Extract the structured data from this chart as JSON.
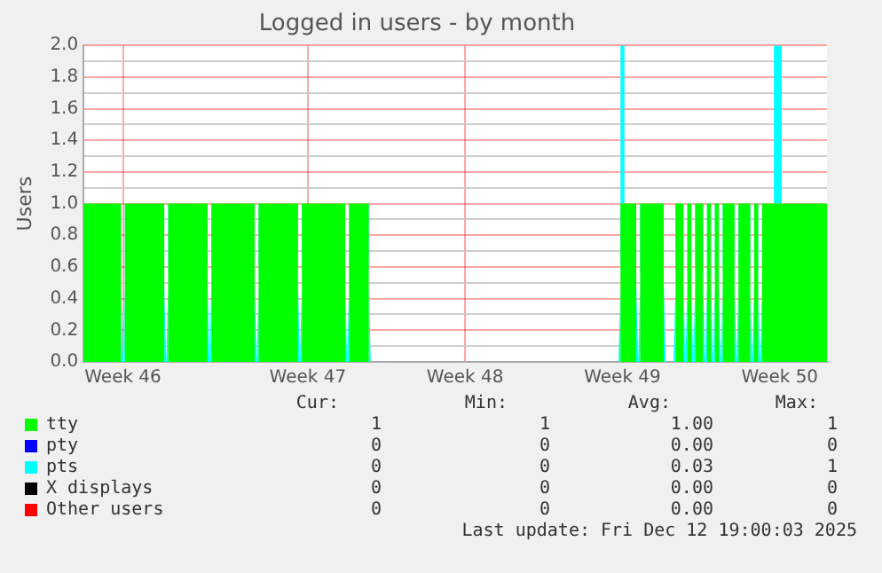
{
  "chart_data": {
    "type": "area",
    "stacked": true,
    "title": "Logged in users - by month",
    "ylabel": "Users",
    "categories": [
      null,
      null,
      null,
      null,
      null,
      null,
      null,
      null,
      null,
      null,
      "Week 46",
      null,
      null,
      null,
      null,
      null,
      null,
      null,
      null,
      null,
      null,
      null,
      null,
      null,
      null,
      null,
      null,
      null,
      null,
      null,
      null,
      null,
      null,
      null,
      null,
      null,
      null,
      null,
      null,
      null,
      null,
      null,
      null,
      null,
      null,
      null,
      null,
      null,
      null,
      null,
      null,
      null,
      null,
      null,
      null,
      null,
      null,
      "Week 47",
      null,
      null,
      null,
      null,
      null,
      null,
      null,
      null,
      null,
      null,
      null,
      null,
      null,
      null,
      null,
      null,
      null,
      null,
      null,
      null,
      null,
      null,
      null,
      null,
      null,
      null,
      null,
      null,
      null,
      null,
      null,
      null,
      null,
      null,
      null,
      null,
      null,
      null,
      null,
      "Week 48",
      null,
      null,
      null,
      null,
      null,
      null,
      null,
      null,
      null,
      null,
      null,
      null,
      null,
      null,
      null,
      null,
      null,
      null,
      null,
      null,
      null,
      null,
      null,
      null,
      null,
      null,
      null,
      null,
      null,
      null,
      null,
      null,
      null,
      null,
      null,
      null,
      null,
      null,
      null,
      "Week 49",
      null,
      null,
      null,
      null,
      null,
      null,
      null,
      null,
      null,
      null,
      null,
      null,
      null,
      null,
      null,
      null,
      null,
      null,
      null,
      null,
      null,
      null,
      null,
      null,
      null,
      null,
      null,
      null,
      null,
      null,
      null,
      null,
      null,
      null,
      null,
      null,
      null,
      null,
      null,
      "Week 50",
      null,
      null,
      null,
      null,
      null,
      null,
      null,
      null,
      null,
      null,
      null,
      null
    ],
    "series": [
      {
        "name": "tty",
        "color": "#00ff00",
        "values": [
          1,
          1,
          1,
          1,
          1,
          1,
          1,
          1,
          1,
          1,
          0,
          1,
          1,
          1,
          1,
          1,
          1,
          1,
          1,
          1,
          1,
          0,
          1,
          1,
          1,
          1,
          1,
          1,
          1,
          1,
          1,
          1,
          0,
          1,
          1,
          1,
          1,
          1,
          1,
          1,
          1,
          1,
          1,
          1,
          0,
          1,
          1,
          1,
          1,
          1,
          1,
          1,
          1,
          1,
          1,
          0,
          1,
          1,
          1,
          1,
          1,
          1,
          1,
          1,
          1,
          1,
          1,
          0,
          1,
          1,
          1,
          1,
          1,
          0,
          0,
          0,
          0,
          0,
          0,
          0,
          0,
          0,
          0,
          0,
          0,
          0,
          0,
          0,
          0,
          0,
          0,
          0,
          0,
          0,
          0,
          0,
          0,
          0,
          0,
          0,
          0,
          0,
          0,
          0,
          0,
          0,
          0,
          0,
          0,
          0,
          0,
          0,
          0,
          0,
          0,
          0,
          0,
          0,
          0,
          0,
          0,
          0,
          0,
          0,
          0,
          0,
          0,
          0,
          0,
          0,
          0,
          0,
          0,
          0,
          0,
          0,
          0,
          1,
          1,
          1,
          1,
          0,
          1,
          1,
          1,
          1,
          1,
          1,
          0,
          0,
          0,
          1,
          1,
          0,
          1,
          0,
          1,
          1,
          0,
          1,
          0,
          1,
          0,
          1,
          1,
          1,
          0,
          1,
          1,
          1,
          0,
          1,
          0,
          1,
          1,
          1,
          1,
          1,
          1,
          1,
          1,
          1,
          1,
          1,
          1,
          1,
          1,
          1,
          1,
          1
        ]
      },
      {
        "name": "pty",
        "color": "#0000ff",
        "values": [
          null,
          null,
          null,
          null,
          null,
          null,
          null,
          null,
          null,
          null,
          null,
          null,
          null,
          null,
          null,
          null,
          null,
          null,
          null,
          null,
          null,
          null,
          null,
          null,
          null,
          null,
          null,
          null,
          null,
          null,
          null,
          null,
          null,
          null,
          null,
          null,
          null,
          null,
          null,
          null,
          null,
          null,
          null,
          null,
          null,
          null,
          null,
          null,
          null,
          null,
          null,
          null,
          null,
          null,
          null,
          null,
          null,
          null,
          null,
          null,
          null,
          null,
          null,
          null,
          null,
          null,
          null,
          null,
          null,
          null,
          null,
          null,
          null,
          null,
          null,
          null,
          null,
          null,
          null,
          null,
          null,
          null,
          null,
          null,
          null,
          null,
          null,
          null,
          null,
          null,
          null,
          null,
          null,
          null,
          null,
          null,
          null,
          null,
          null,
          null,
          null,
          null,
          null,
          null,
          null,
          null,
          null,
          null,
          null,
          null,
          null,
          null,
          null,
          null,
          null,
          null,
          null,
          null,
          null,
          null,
          null,
          null,
          null,
          null,
          null,
          null,
          null,
          null,
          null,
          null,
          null,
          null,
          null,
          null,
          null,
          null,
          null,
          null,
          null,
          null,
          null,
          null,
          null,
          null,
          null,
          null,
          null,
          null,
          null,
          null,
          null,
          null,
          null,
          null,
          null,
          null,
          null,
          null,
          null,
          null,
          null,
          null,
          null,
          null,
          null,
          null,
          null,
          null,
          null,
          null,
          null,
          null,
          null,
          null,
          null,
          null,
          null,
          null,
          null,
          null,
          null,
          null,
          null,
          null,
          null,
          null,
          null,
          null,
          null,
          null
        ]
      },
      {
        "name": "pts",
        "color": "#00ffff",
        "values": [
          0,
          0,
          0,
          0,
          0,
          0,
          0,
          0,
          0,
          0,
          0,
          0,
          0,
          0,
          0,
          0,
          0,
          0,
          0,
          0,
          0,
          0,
          0,
          0,
          0,
          0,
          0,
          0,
          0,
          0,
          0,
          0,
          0,
          0,
          0,
          0,
          0,
          0,
          0,
          0,
          0,
          0,
          0,
          0,
          0,
          0,
          0,
          0,
          0,
          0,
          0,
          0,
          0,
          0,
          0,
          0,
          0,
          0,
          0,
          0,
          0,
          0,
          0,
          0,
          0,
          0,
          0,
          0,
          0,
          0,
          0,
          0,
          0,
          0,
          0,
          0,
          0,
          0,
          0,
          0,
          0,
          0,
          0,
          0,
          0,
          0,
          0,
          0,
          0,
          0,
          0,
          0,
          0,
          0,
          0,
          0,
          0,
          0,
          0,
          0,
          0,
          0,
          0,
          0,
          0,
          0,
          0,
          0,
          0,
          0,
          0,
          0,
          0,
          0,
          0,
          0,
          0,
          0,
          0,
          0,
          0,
          0,
          0,
          0,
          0,
          0,
          0,
          0,
          0,
          0,
          0,
          0,
          0,
          0,
          0,
          0,
          0,
          1,
          0,
          0,
          0,
          0,
          0,
          0,
          0,
          0,
          0,
          0,
          0,
          0,
          0,
          0,
          0,
          0,
          0,
          0,
          0,
          0,
          0,
          0,
          0,
          0,
          0,
          0,
          0,
          0,
          0,
          0,
          0,
          0,
          0,
          0,
          0,
          0,
          0,
          0,
          1,
          1,
          0,
          0,
          0,
          0,
          0,
          0,
          0,
          0,
          0,
          0,
          0,
          0
        ]
      },
      {
        "name": "X displays",
        "color": "#000000",
        "values": [
          null,
          null,
          null,
          null,
          null,
          null,
          null,
          null,
          null,
          null,
          null,
          null,
          null,
          null,
          null,
          null,
          null,
          null,
          null,
          null,
          null,
          null,
          null,
          null,
          null,
          null,
          null,
          null,
          null,
          null,
          null,
          null,
          null,
          null,
          null,
          null,
          null,
          null,
          null,
          null,
          null,
          null,
          null,
          null,
          null,
          null,
          null,
          null,
          null,
          null,
          null,
          null,
          null,
          null,
          null,
          null,
          null,
          null,
          null,
          null,
          null,
          null,
          null,
          null,
          null,
          null,
          null,
          null,
          null,
          null,
          null,
          null,
          null,
          null,
          null,
          null,
          null,
          null,
          null,
          null,
          null,
          null,
          null,
          null,
          null,
          null,
          null,
          null,
          null,
          null,
          null,
          null,
          null,
          null,
          null,
          null,
          null,
          null,
          null,
          null,
          null,
          null,
          null,
          null,
          null,
          null,
          null,
          null,
          null,
          null,
          null,
          null,
          null,
          null,
          null,
          null,
          null,
          null,
          null,
          null,
          null,
          null,
          null,
          null,
          null,
          null,
          null,
          null,
          null,
          null,
          null,
          null,
          null,
          null,
          null,
          null,
          null,
          null,
          null,
          null,
          null,
          null,
          null,
          null,
          null,
          null,
          null,
          null,
          null,
          null,
          null,
          null,
          null,
          null,
          null,
          null,
          null,
          null,
          null,
          null,
          null,
          null,
          null,
          null,
          null,
          null,
          null,
          null,
          null,
          null,
          null,
          null,
          null,
          null,
          null,
          null,
          null,
          null,
          null,
          null,
          null,
          null,
          null,
          null,
          null,
          null,
          null,
          null,
          null,
          null
        ]
      },
      {
        "name": "Other users",
        "color": "#ff0000",
        "values": [
          null,
          null,
          null,
          null,
          null,
          null,
          null,
          null,
          null,
          null,
          null,
          null,
          null,
          null,
          null,
          null,
          null,
          null,
          null,
          null,
          null,
          null,
          null,
          null,
          null,
          null,
          null,
          null,
          null,
          null,
          null,
          null,
          null,
          null,
          null,
          null,
          null,
          null,
          null,
          null,
          null,
          null,
          null,
          null,
          null,
          null,
          null,
          null,
          null,
          null,
          null,
          null,
          null,
          null,
          null,
          null,
          null,
          null,
          null,
          null,
          null,
          null,
          null,
          null,
          null,
          null,
          null,
          null,
          null,
          null,
          null,
          null,
          null,
          null,
          null,
          null,
          null,
          null,
          null,
          null,
          null,
          null,
          null,
          null,
          null,
          null,
          null,
          null,
          null,
          null,
          null,
          null,
          null,
          null,
          null,
          null,
          null,
          null,
          null,
          null,
          null,
          null,
          null,
          null,
          null,
          null,
          null,
          null,
          null,
          null,
          null,
          null,
          null,
          null,
          null,
          null,
          null,
          null,
          null,
          null,
          null,
          null,
          null,
          null,
          null,
          null,
          null,
          null,
          null,
          null,
          null,
          null,
          null,
          null,
          null,
          null,
          null,
          null,
          null,
          null,
          null,
          null,
          null,
          null,
          null,
          null,
          null,
          null,
          null,
          null,
          null,
          null,
          null,
          null,
          null,
          null,
          null,
          null,
          null,
          null,
          null,
          null,
          null,
          null,
          null,
          null,
          null,
          null,
          null,
          null,
          null,
          null,
          null,
          null,
          null,
          null,
          null,
          null,
          null,
          null,
          null,
          null,
          null,
          null,
          null,
          null,
          null,
          null,
          null,
          null
        ]
      }
    ],
    "ylim": [
      0,
      2
    ],
    "yticks": [
      {
        "value": 0,
        "label": "0.0"
      },
      {
        "value": 0.1,
        "label": null
      },
      {
        "value": 0.2,
        "label": "0.2"
      },
      {
        "value": 0.3,
        "label": null
      },
      {
        "value": 0.4,
        "label": "0.4"
      },
      {
        "value": 0.5,
        "label": null
      },
      {
        "value": 0.6,
        "label": "0.6"
      },
      {
        "value": 0.7,
        "label": null
      },
      {
        "value": 0.8,
        "label": "0.8"
      },
      {
        "value": 0.9,
        "label": null
      },
      {
        "value": 1,
        "label": "1.0"
      },
      {
        "value": 1.1,
        "label": null
      },
      {
        "value": 1.2,
        "label": "1.2"
      },
      {
        "value": 1.3,
        "label": null
      },
      {
        "value": 1.4,
        "label": "1.4"
      },
      {
        "value": 1.5,
        "label": null
      },
      {
        "value": 1.6,
        "label": "1.6"
      },
      {
        "value": 1.7,
        "label": null
      },
      {
        "value": 1.8,
        "label": "1.8"
      },
      {
        "value": 1.9,
        "label": null
      },
      {
        "value": 2,
        "label": "2.0"
      }
    ],
    "grid": true,
    "legend": "bottom",
    "annotations": [
      "Cur:",
      "Min:",
      "Avg:",
      "Max:",
      "1",
      "1",
      "1.00",
      "1",
      "0",
      "0",
      "0.00",
      "0",
      "0",
      "0",
      "0.03",
      "1",
      "0",
      "0",
      "0.00",
      "0",
      "0",
      "0",
      "0.00",
      "0",
      "Last update: Fri Dec 12 19:00:03 2025"
    ]
  }
}
